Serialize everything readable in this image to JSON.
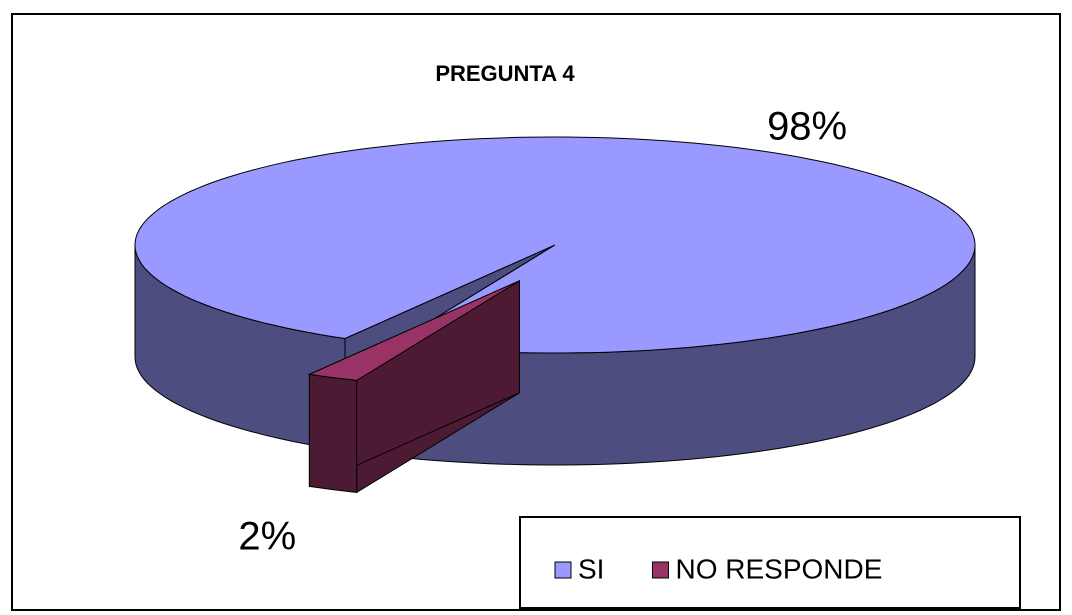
{
  "chart_data": {
    "type": "pie",
    "title": "PREGUNTA 4",
    "categories": [
      "SI",
      "NO RESPONDE"
    ],
    "values": [
      98,
      2
    ],
    "value_labels": [
      "98%",
      "2%"
    ],
    "colors": [
      "#9999ff",
      "#993366"
    ],
    "legend": "bottom-right"
  }
}
